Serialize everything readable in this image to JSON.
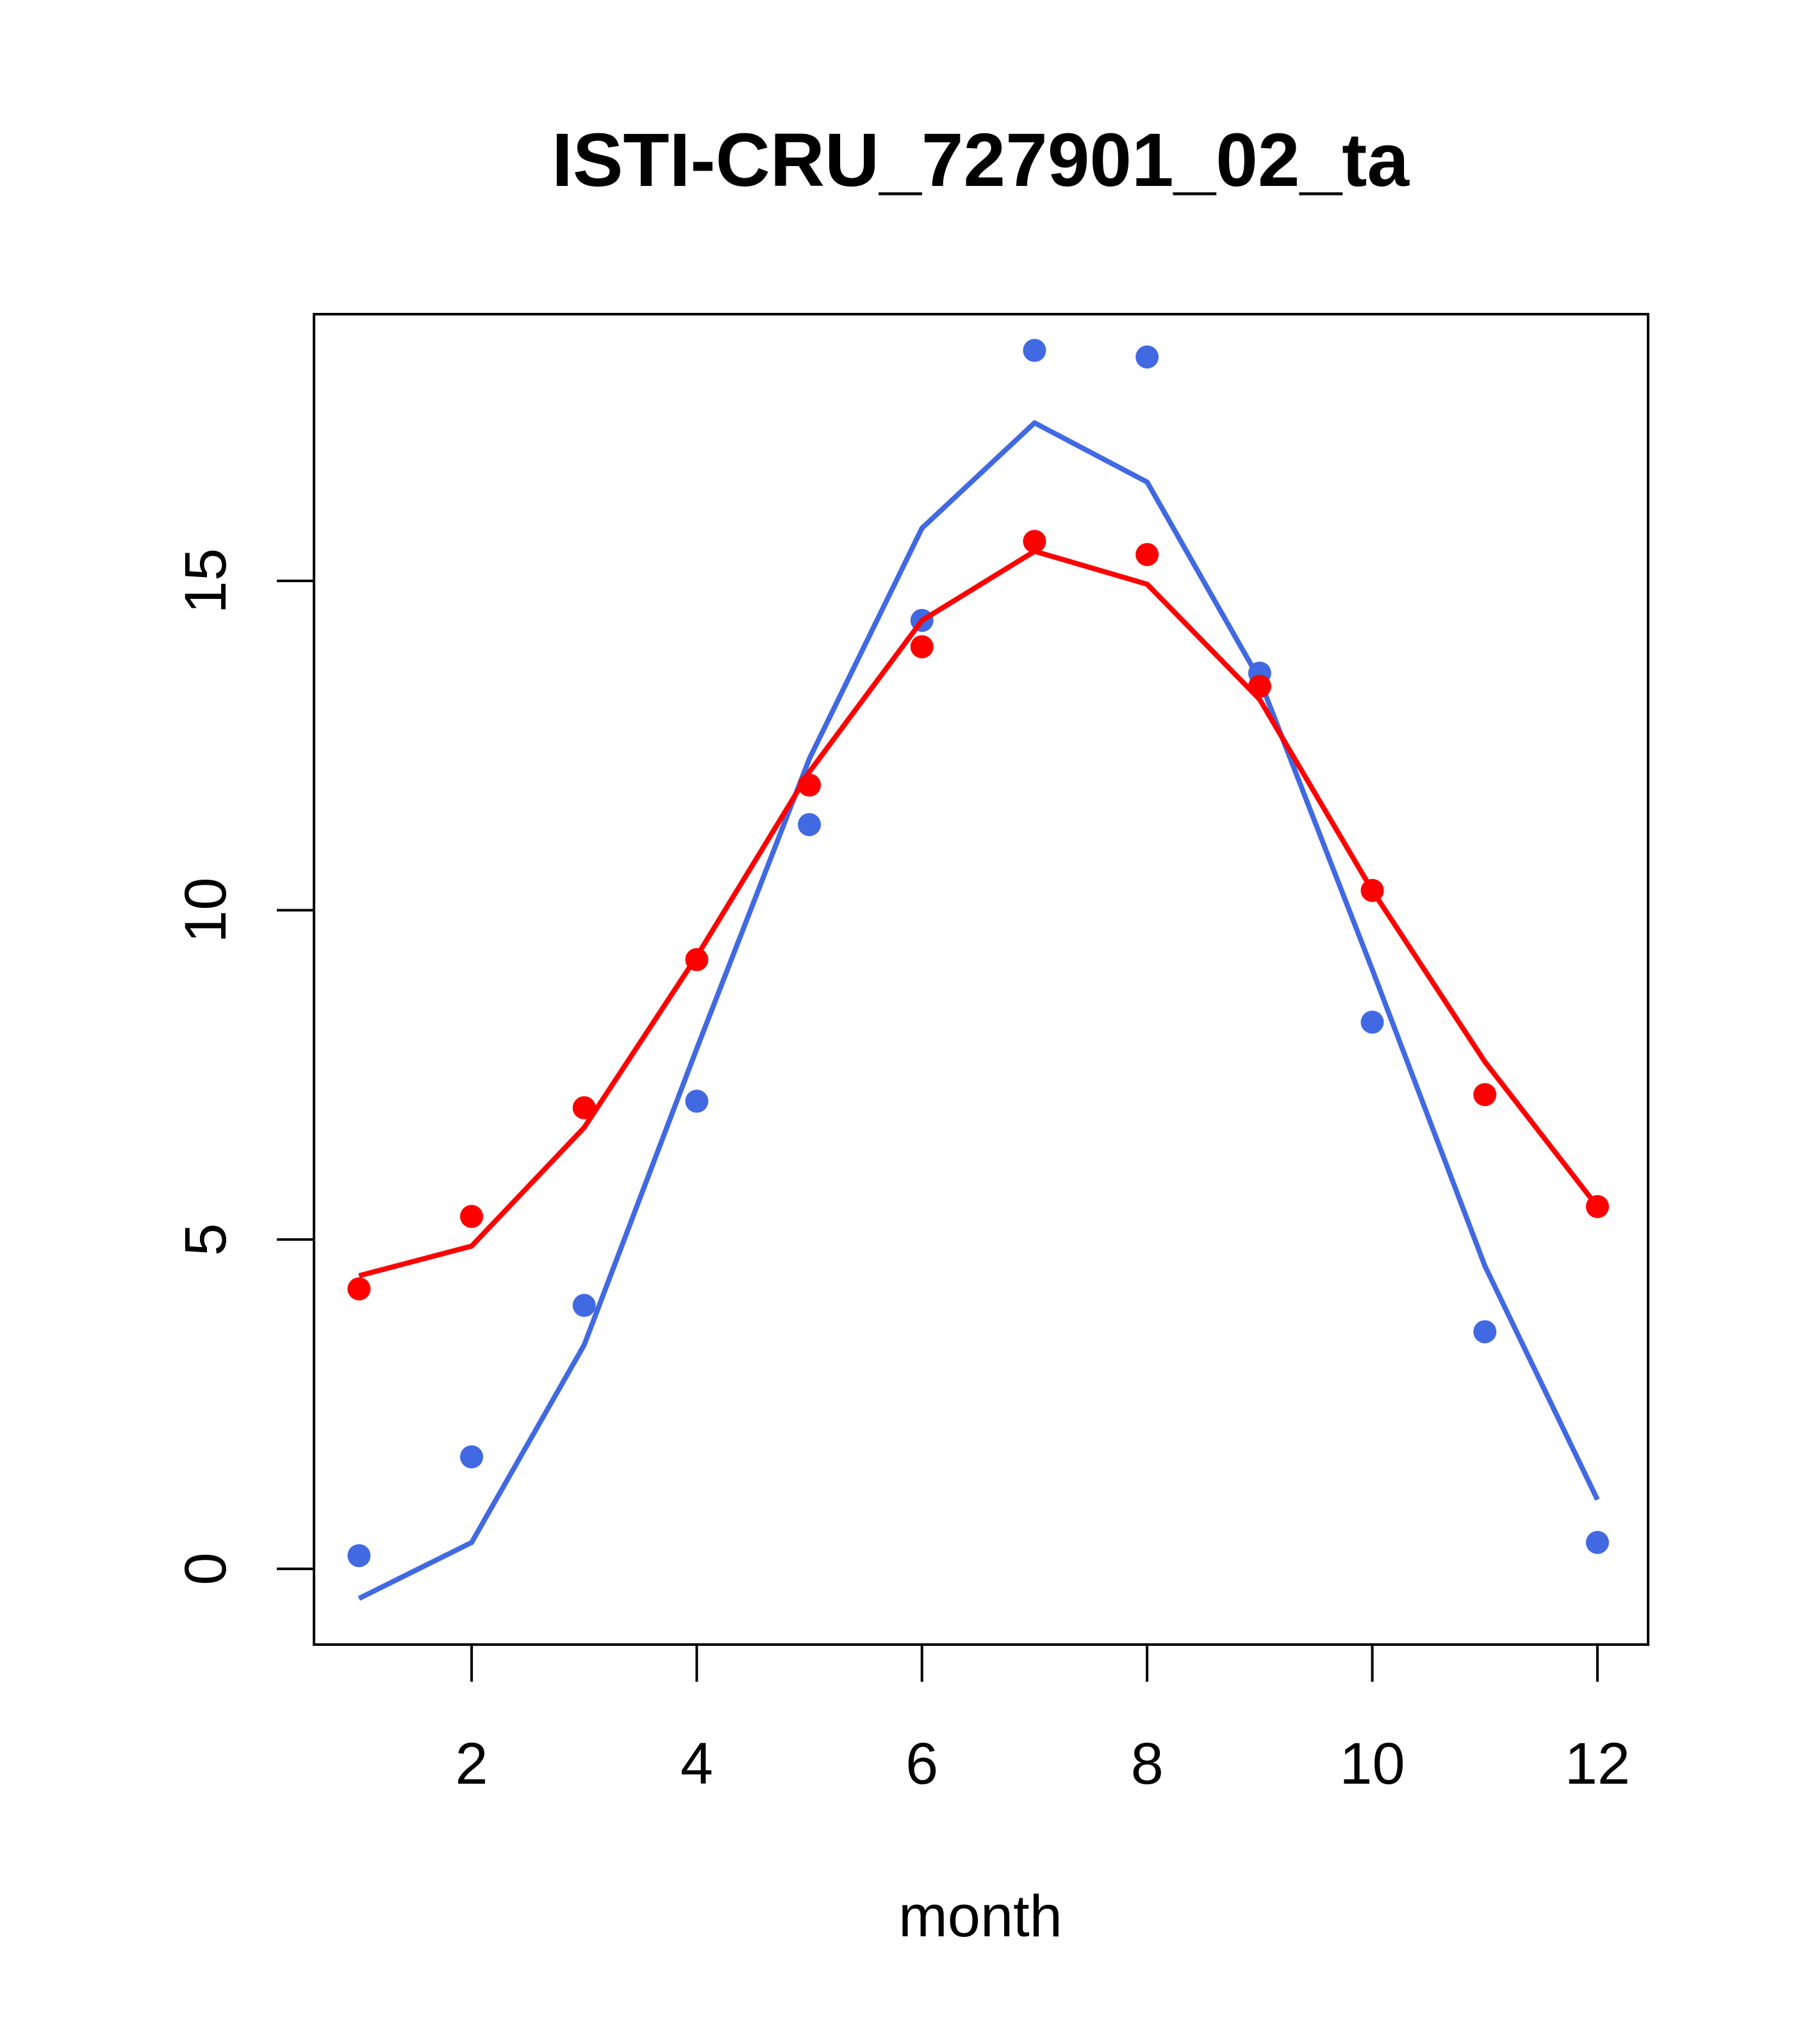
{
  "chart_data": {
    "type": "line",
    "title": "ISTI-CRU_727901_02_ta",
    "xlabel": "month",
    "ylabel": "",
    "xlim": [
      0.6,
      12.45
    ],
    "ylim": [
      -1.15,
      19.05
    ],
    "x_ticks": [
      2,
      4,
      6,
      8,
      10,
      12
    ],
    "y_ticks": [
      0,
      5,
      10,
      15
    ],
    "grid": false,
    "legend": "none",
    "x": [
      1,
      2,
      3,
      4,
      5,
      6,
      7,
      8,
      9,
      10,
      11,
      12
    ],
    "series": [
      {
        "color": "#4169E1",
        "points": [
          0.2,
          1.7,
          4.0,
          7.1,
          11.3,
          14.4,
          18.5,
          18.4,
          13.6,
          8.3,
          3.6,
          0.4
        ],
        "line": [
          -0.45,
          0.4,
          3.4,
          7.9,
          12.3,
          15.8,
          17.4,
          16.5,
          13.5,
          9.1,
          4.6,
          1.05
        ]
      },
      {
        "color": "#FF0000",
        "points": [
          4.25,
          5.35,
          7.0,
          9.25,
          11.9,
          14.0,
          15.6,
          15.4,
          13.4,
          10.3,
          7.2,
          5.5
        ],
        "line": [
          4.45,
          4.9,
          6.7,
          9.3,
          12.1,
          14.4,
          15.45,
          14.95,
          13.2,
          10.3,
          7.7,
          5.5
        ]
      }
    ]
  }
}
